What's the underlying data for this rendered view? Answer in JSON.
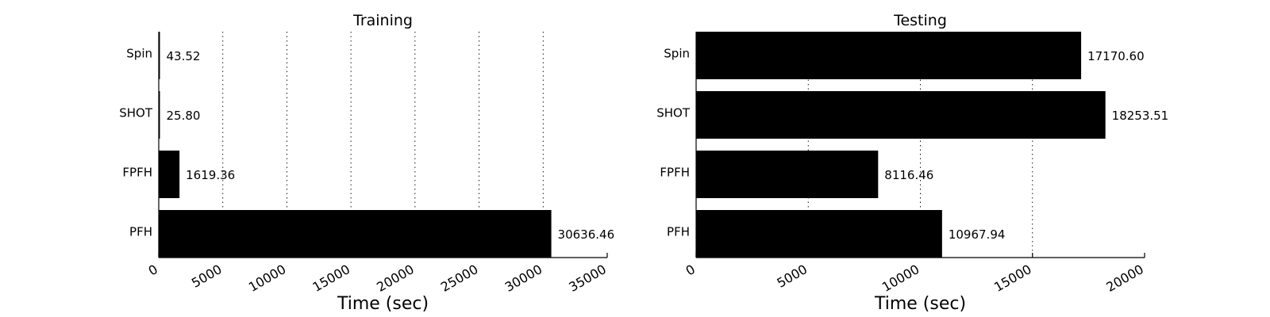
{
  "chart_data": [
    {
      "type": "bar",
      "orientation": "horizontal",
      "title": "Training",
      "xlabel": "Time (sec)",
      "ylabel": "",
      "categories": [
        "Spin",
        "SHOT",
        "FPFH",
        "PFH"
      ],
      "values": [
        43.52,
        25.8,
        1619.36,
        30636.46
      ],
      "value_labels": [
        "43.52",
        "25.80",
        "1619.36",
        "30636.46"
      ],
      "xlim": [
        0,
        35000
      ],
      "xticks": [
        0,
        5000,
        10000,
        15000,
        20000,
        25000,
        30000,
        35000
      ],
      "xtick_labels": [
        "0",
        "5000",
        "10000",
        "15000",
        "20000",
        "25000",
        "30000",
        "35000"
      ],
      "grid": true,
      "bar_color": "#000000"
    },
    {
      "type": "bar",
      "orientation": "horizontal",
      "title": "Testing",
      "xlabel": "Time (sec)",
      "ylabel": "",
      "categories": [
        "Spin",
        "SHOT",
        "FPFH",
        "PFH"
      ],
      "values": [
        17170.6,
        18253.51,
        8116.46,
        10967.94
      ],
      "value_labels": [
        "17170.60",
        "18253.51",
        "8116.46",
        "10967.94"
      ],
      "xlim": [
        0,
        20000
      ],
      "xticks": [
        0,
        5000,
        10000,
        15000,
        20000
      ],
      "xtick_labels": [
        "0",
        "5000",
        "10000",
        "15000",
        "20000"
      ],
      "grid": true,
      "bar_color": "#000000"
    }
  ]
}
